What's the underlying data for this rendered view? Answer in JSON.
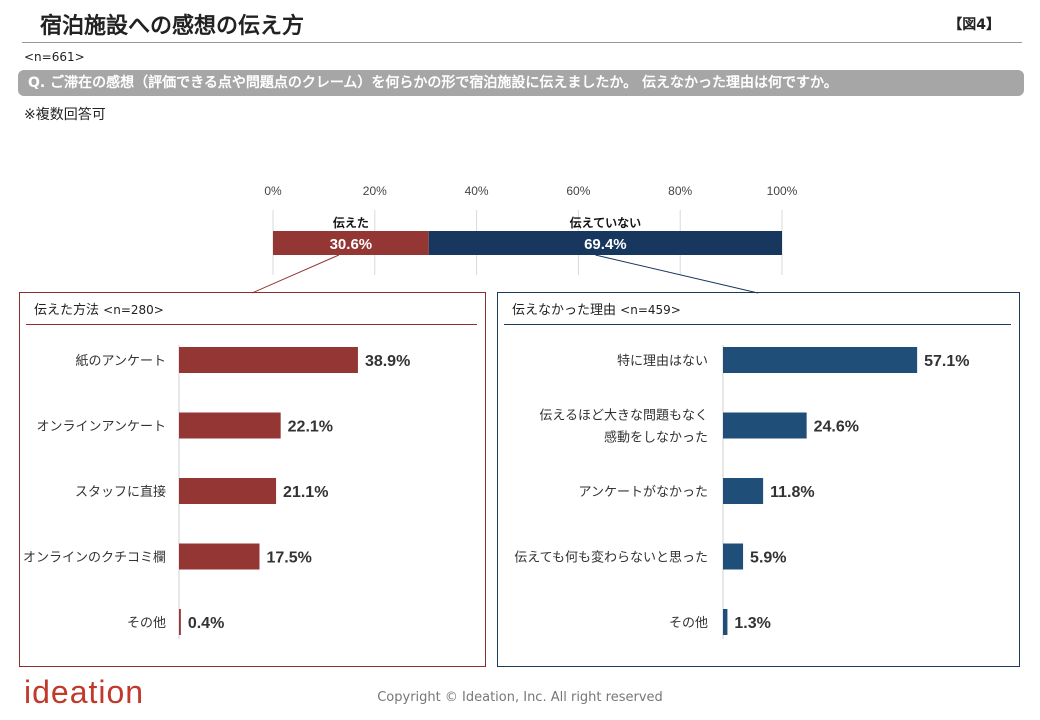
{
  "page": {
    "title": "宿泊施設への感想の伝え方",
    "figure_no": "【図4】",
    "sample": "<n=661>",
    "question": "Q. ご滞在の感想（評価できる点や問題点のクレーム）を何らかの形で宿泊施設に伝えましたか。 伝えなかった理由は何ですか。",
    "note": "※複数回答可",
    "copyright": "Copyright © Ideation, Inc. All right reserved",
    "logo_text": "ideation"
  },
  "colors": {
    "red": "#943634",
    "navy": "#17375e",
    "blue": "#1f4e79",
    "grid": "#d9d9d9"
  },
  "chart_data": [
    {
      "type": "bar",
      "orientation": "horizontal-stacked",
      "xlim": [
        0,
        100
      ],
      "ticks": [
        "0%",
        "20%",
        "40%",
        "60%",
        "80%",
        "100%"
      ],
      "grid": true,
      "segments": [
        {
          "name": "伝えた",
          "value": 30.6,
          "label": "30.6%"
        },
        {
          "name": "伝えていない",
          "value": 69.4,
          "label": "69.4%"
        }
      ]
    },
    {
      "type": "bar",
      "orientation": "horizontal",
      "title": "伝えた方法",
      "n": "<n=280>",
      "categories": [
        "紙のアンケート",
        "オンラインアンケート",
        "スタッフに直接",
        "オンラインのクチコミ欄",
        "その他"
      ],
      "values": [
        38.9,
        22.1,
        21.1,
        17.5,
        0.4
      ],
      "labels": [
        "38.9%",
        "22.1%",
        "21.1%",
        "17.5%",
        "0.4%"
      ]
    },
    {
      "type": "bar",
      "orientation": "horizontal",
      "title": "伝えなかった理由",
      "n": "<n=459>",
      "categories": [
        "特に理由はない",
        "伝えるほど大きな問題もなく\n感動をしなかった",
        "アンケートがなかった",
        "伝えても何も変わらないと思った",
        "その他"
      ],
      "values": [
        57.1,
        24.6,
        11.8,
        5.9,
        1.3
      ],
      "labels": [
        "57.1%",
        "24.6%",
        "11.8%",
        "5.9%",
        "1.3%"
      ]
    }
  ]
}
